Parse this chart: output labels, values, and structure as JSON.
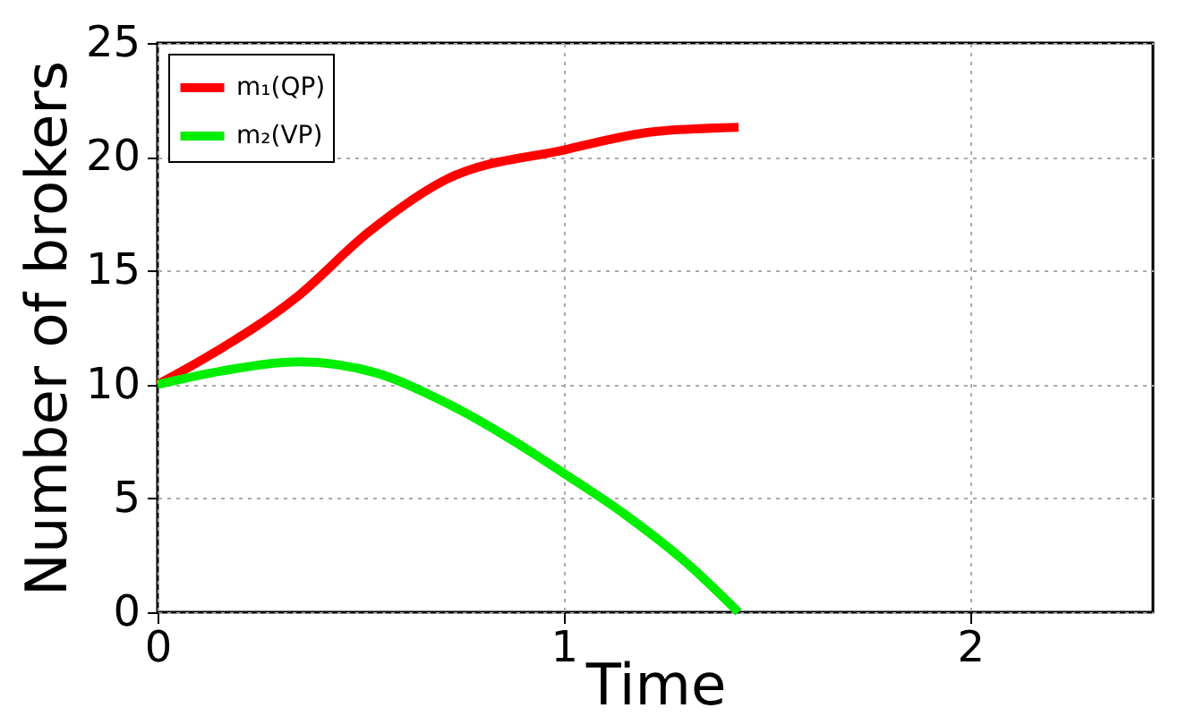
{
  "chart_data": {
    "type": "line",
    "xlabel": "Time",
    "ylabel": "Number of brokers",
    "xlim": [
      0,
      2.45
    ],
    "xticks": [
      0,
      1,
      2
    ],
    "ylim": [
      0,
      25
    ],
    "yticks": [
      0,
      5,
      10,
      15,
      20,
      25
    ],
    "grid": true,
    "legend": "top left",
    "marker": "none",
    "line_style": "solid",
    "series": [
      {
        "name": "m₁(QP)",
        "color": "#ff0000",
        "x": [
          0,
          0.13,
          0.34,
          0.52,
          0.71,
          1,
          1.22,
          1.43
        ],
        "values": [
          10,
          11.3,
          13.8,
          16.7,
          19,
          20.3,
          21.1,
          21.3
        ]
      },
      {
        "name": "m₂(VP)",
        "color": "#00ee00",
        "x": [
          0,
          0.16,
          0.35,
          0.54,
          0.71,
          0.86,
          1,
          1.15,
          1.3,
          1.43
        ],
        "values": [
          10,
          10.6,
          11,
          10.5,
          9.2,
          7.7,
          6.1,
          4.3,
          2.2,
          0
        ]
      }
    ]
  }
}
